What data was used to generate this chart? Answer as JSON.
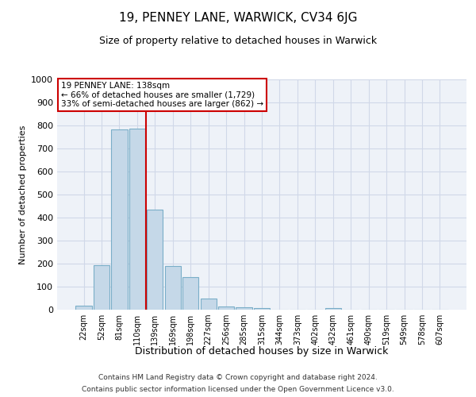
{
  "title": "19, PENNEY LANE, WARWICK, CV34 6JG",
  "subtitle": "Size of property relative to detached houses in Warwick",
  "xlabel": "Distribution of detached houses by size in Warwick",
  "ylabel": "Number of detached properties",
  "categories": [
    "22sqm",
    "52sqm",
    "81sqm",
    "110sqm",
    "139sqm",
    "169sqm",
    "198sqm",
    "227sqm",
    "256sqm",
    "285sqm",
    "315sqm",
    "344sqm",
    "373sqm",
    "402sqm",
    "432sqm",
    "461sqm",
    "490sqm",
    "519sqm",
    "549sqm",
    "578sqm",
    "607sqm"
  ],
  "values": [
    18,
    193,
    783,
    785,
    435,
    190,
    143,
    48,
    15,
    10,
    8,
    0,
    0,
    0,
    8,
    0,
    0,
    0,
    0,
    0,
    0
  ],
  "bar_color": "#c5d8e8",
  "bar_edge_color": "#7aaec8",
  "property_bin_index": 4,
  "annotation_title": "19 PENNEY LANE: 138sqm",
  "annotation_line1": "← 66% of detached houses are smaller (1,729)",
  "annotation_line2": "33% of semi-detached houses are larger (862) →",
  "annotation_box_color": "#ffffff",
  "annotation_box_edge": "#cc0000",
  "vline_color": "#cc0000",
  "grid_color": "#d0d8e8",
  "background_color": "#eef2f8",
  "footnote1": "Contains HM Land Registry data © Crown copyright and database right 2024.",
  "footnote2": "Contains public sector information licensed under the Open Government Licence v3.0.",
  "ylim": [
    0,
    1000
  ],
  "yticks": [
    0,
    100,
    200,
    300,
    400,
    500,
    600,
    700,
    800,
    900,
    1000
  ]
}
